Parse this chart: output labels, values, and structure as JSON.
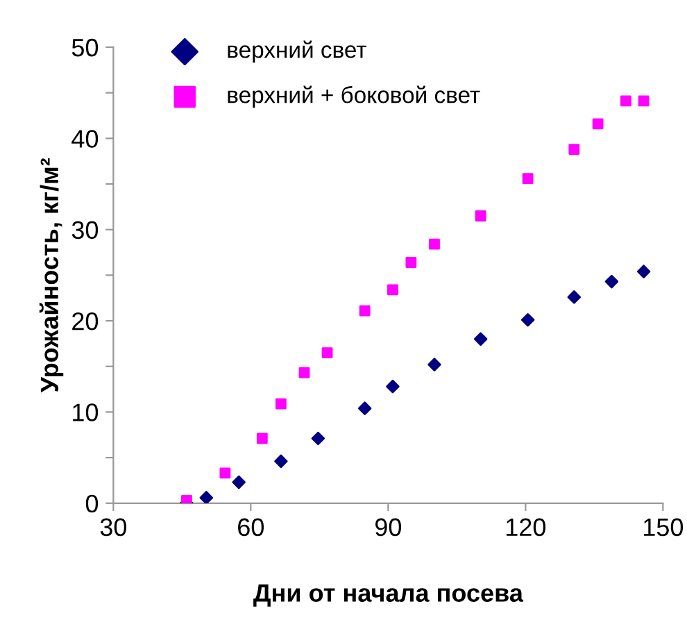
{
  "chart_data": {
    "type": "scatter",
    "xlabel": "Дни от начала посева",
    "ylabel": "Урожайность, кг/м²",
    "xlim": [
      30,
      150
    ],
    "xticks": [
      30,
      60,
      90,
      120,
      150
    ],
    "ylim": [
      0,
      50
    ],
    "yticks": [
      0,
      {
        "value": 5,
        "label": null
      },
      10,
      {
        "value": 15,
        "label": null
      },
      20,
      {
        "value": 25,
        "label": null
      },
      30,
      {
        "value": 35,
        "label": null
      },
      40,
      {
        "value": 45,
        "label": null
      },
      50
    ],
    "grid": false,
    "legend": "top left",
    "series": [
      {
        "name": "верхний свет",
        "color": "#000080",
        "marker": "diamond",
        "x": [
          46,
          50.3,
          57.4,
          66.6,
          74.7,
          84.9,
          91,
          100.1,
          110.2,
          120.5,
          130.6,
          138.8,
          145.8
        ],
        "values": [
          0,
          0.6,
          2.3,
          4.6,
          7.1,
          10.4,
          12.8,
          15.2,
          18.0,
          20.1,
          22.6,
          24.3,
          25.4
        ]
      },
      {
        "name": "верхний + боковой свет",
        "color": "#ff00ff",
        "marker": "square",
        "x": [
          46,
          54.4,
          62.5,
          66.6,
          71.7,
          76.7,
          84.9,
          91,
          95,
          100.1,
          110.2,
          120.5,
          130.6,
          135.8,
          141.9,
          145.8
        ],
        "values": [
          0.3,
          3.3,
          7.1,
          10.9,
          14.3,
          16.5,
          21.1,
          23.4,
          26.4,
          28.4,
          31.5,
          35.6,
          38.8,
          41.6,
          44.1,
          44.1
        ]
      }
    ]
  }
}
